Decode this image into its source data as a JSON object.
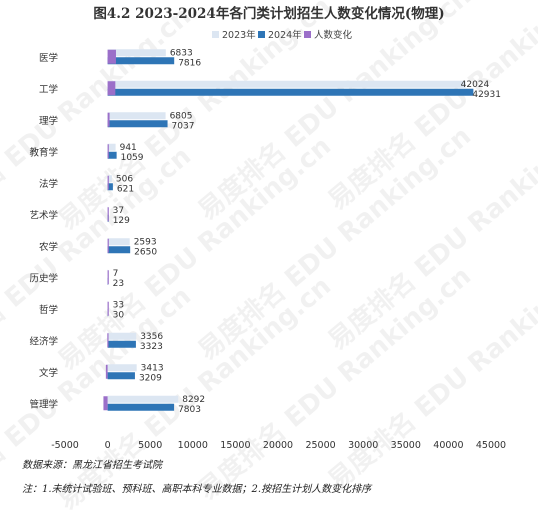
{
  "chart_data": {
    "type": "bar",
    "orientation": "horizontal",
    "title": "图4.2 2023-2024年各门类计划招生人数变化情况(物理)",
    "categories": [
      "医学",
      "工学",
      "理学",
      "教育学",
      "法学",
      "艺术学",
      "农学",
      "历史学",
      "哲学",
      "经济学",
      "文学",
      "管理学"
    ],
    "series": [
      {
        "name": "2023年",
        "color": "#dce6f2",
        "values": [
          6833,
          42024,
          6805,
          941,
          506,
          37,
          2593,
          7,
          33,
          3356,
          3413,
          8292
        ]
      },
      {
        "name": "2024年",
        "color": "#2e75b6",
        "values": [
          7816,
          42931,
          7037,
          1059,
          621,
          129,
          2650,
          23,
          30,
          3323,
          3209,
          7803
        ]
      },
      {
        "name": "人数变化",
        "color": "#9b6fc9",
        "values": [
          983,
          907,
          232,
          118,
          115,
          92,
          57,
          16,
          -3,
          -33,
          -204,
          -489
        ]
      }
    ],
    "xlim": [
      -5000,
      45000
    ],
    "xticks": [
      "-5000",
      "0",
      "5000",
      "10000",
      "15000",
      "20000",
      "25000",
      "30000",
      "35000",
      "40000",
      "45000"
    ],
    "legend_position": "top-center",
    "grid": false
  },
  "watermark": "易度排名 EDU Ranking.cn",
  "notes": {
    "source": "数据来源：黑龙江省招生考试院",
    "remark": "注：1.未统计试验班、预科班、高职本科专业数据；2.按招生计划人数变化排序"
  }
}
